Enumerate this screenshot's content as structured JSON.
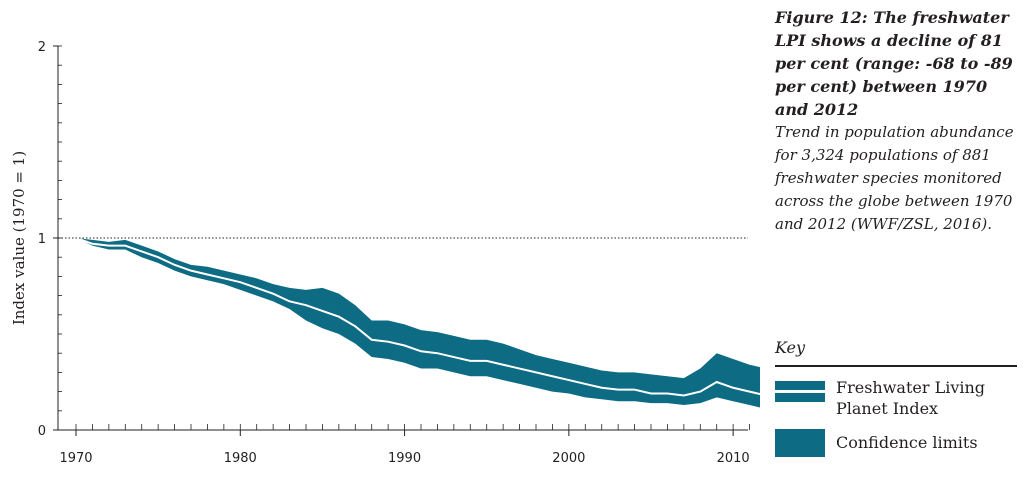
{
  "caption": {
    "title": "Figure 12: The freshwater LPI shows a decline of 81 per cent (range: -68 to -89 per cent) between 1970 and 2012",
    "description": "Trend in population abundance for 3,324 populations of 881 freshwater species monitored across the globe between 1970 and 2012 (WWF/ZSL, 2016)."
  },
  "key": {
    "heading": "Key",
    "items": [
      {
        "label": "Freshwater Living Planet Index",
        "kind": "line"
      },
      {
        "label": "Confidence limits",
        "kind": "band"
      }
    ]
  },
  "colors": {
    "band": "#0d6b84",
    "index_line": "#ffffff",
    "axis": "#231f20",
    "baseline": "#231f20"
  },
  "chart_data": {
    "type": "area",
    "ylabel": "Index value (1970 = 1)",
    "xlim": [
      1970,
      2012
    ],
    "ylim": [
      0,
      2
    ],
    "x_ticks": [
      1970,
      1980,
      1990,
      2000,
      2010
    ],
    "y_ticks": [
      0,
      1,
      2
    ],
    "baseline": 1,
    "x": [
      1970,
      1971,
      1972,
      1973,
      1974,
      1975,
      1976,
      1977,
      1978,
      1979,
      1980,
      1981,
      1982,
      1983,
      1984,
      1985,
      1986,
      1987,
      1988,
      1989,
      1990,
      1991,
      1992,
      1993,
      1994,
      1995,
      1996,
      1997,
      1998,
      1999,
      2000,
      2001,
      2002,
      2003,
      2004,
      2005,
      2006,
      2007,
      2008,
      2009,
      2010,
      2011,
      2012
    ],
    "series": [
      {
        "name": "Freshwater Living Planet Index",
        "values": [
          1.0,
          0.97,
          0.96,
          0.96,
          0.93,
          0.9,
          0.86,
          0.83,
          0.81,
          0.79,
          0.77,
          0.74,
          0.71,
          0.67,
          0.65,
          0.62,
          0.59,
          0.54,
          0.47,
          0.46,
          0.44,
          0.41,
          0.4,
          0.38,
          0.36,
          0.36,
          0.34,
          0.32,
          0.3,
          0.28,
          0.26,
          0.24,
          0.22,
          0.21,
          0.21,
          0.19,
          0.19,
          0.18,
          0.2,
          0.25,
          0.22,
          0.2,
          0.18
        ]
      },
      {
        "name": "Upper confidence limit",
        "values": [
          1.0,
          0.99,
          0.98,
          0.99,
          0.96,
          0.93,
          0.89,
          0.86,
          0.85,
          0.83,
          0.81,
          0.79,
          0.76,
          0.74,
          0.73,
          0.74,
          0.71,
          0.65,
          0.57,
          0.57,
          0.55,
          0.52,
          0.51,
          0.49,
          0.47,
          0.47,
          0.45,
          0.42,
          0.39,
          0.37,
          0.35,
          0.33,
          0.31,
          0.3,
          0.3,
          0.29,
          0.28,
          0.27,
          0.32,
          0.4,
          0.37,
          0.34,
          0.32
        ]
      },
      {
        "name": "Lower confidence limit",
        "values": [
          1.0,
          0.96,
          0.94,
          0.94,
          0.9,
          0.87,
          0.83,
          0.8,
          0.78,
          0.76,
          0.73,
          0.7,
          0.67,
          0.63,
          0.57,
          0.53,
          0.5,
          0.45,
          0.38,
          0.37,
          0.35,
          0.32,
          0.32,
          0.3,
          0.28,
          0.28,
          0.26,
          0.24,
          0.22,
          0.2,
          0.19,
          0.17,
          0.16,
          0.15,
          0.15,
          0.14,
          0.14,
          0.13,
          0.14,
          0.17,
          0.15,
          0.13,
          0.11
        ]
      }
    ]
  }
}
